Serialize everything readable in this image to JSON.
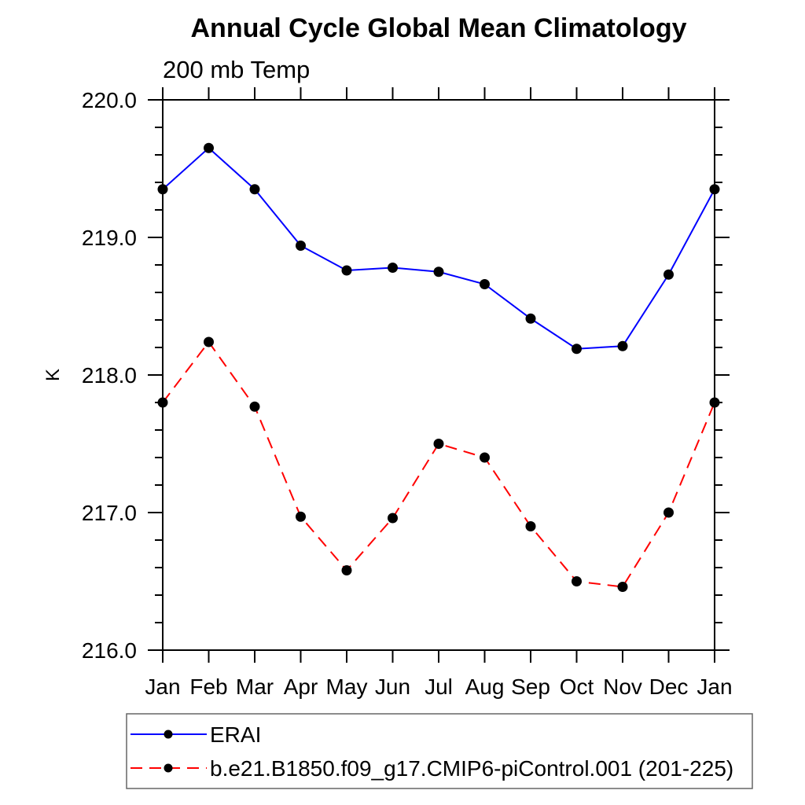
{
  "chart_data": {
    "type": "line",
    "title": "Annual Cycle Global Mean Climatology",
    "subtitle": "200 mb Temp",
    "ylabel": "K",
    "xlabel": "",
    "categories": [
      "Jan",
      "Feb",
      "Mar",
      "Apr",
      "May",
      "Jun",
      "Jul",
      "Aug",
      "Sep",
      "Oct",
      "Nov",
      "Dec",
      "Jan"
    ],
    "series": [
      {
        "name": "ERAI",
        "color": "#0000ff",
        "line_style": "solid",
        "marker": "circle",
        "values": [
          219.35,
          219.65,
          219.35,
          218.94,
          218.76,
          218.78,
          218.75,
          218.66,
          218.41,
          218.19,
          218.21,
          218.73,
          219.35
        ]
      },
      {
        "name": "b.e21.B1850.f09_g17.CMIP6-piControl.001 (201-225)",
        "color": "#ff0000",
        "line_style": "dashed",
        "marker": "circle",
        "values": [
          217.8,
          218.24,
          217.77,
          216.97,
          216.58,
          216.96,
          217.5,
          217.4,
          216.9,
          216.5,
          216.46,
          217.0,
          217.8
        ]
      }
    ],
    "ylim": [
      216.0,
      220.0
    ],
    "y_major_ticks": [
      216.0,
      217.0,
      218.0,
      219.0,
      220.0
    ],
    "y_minor_step": 0.2,
    "y_tick_decimals": 1,
    "grid": false,
    "legend_position": "bottom-left",
    "axis_color": "#000000",
    "text_color": "#000000",
    "marker_color": "#000000",
    "legend_border_color": "#666666",
    "background_color": "#ffffff"
  }
}
